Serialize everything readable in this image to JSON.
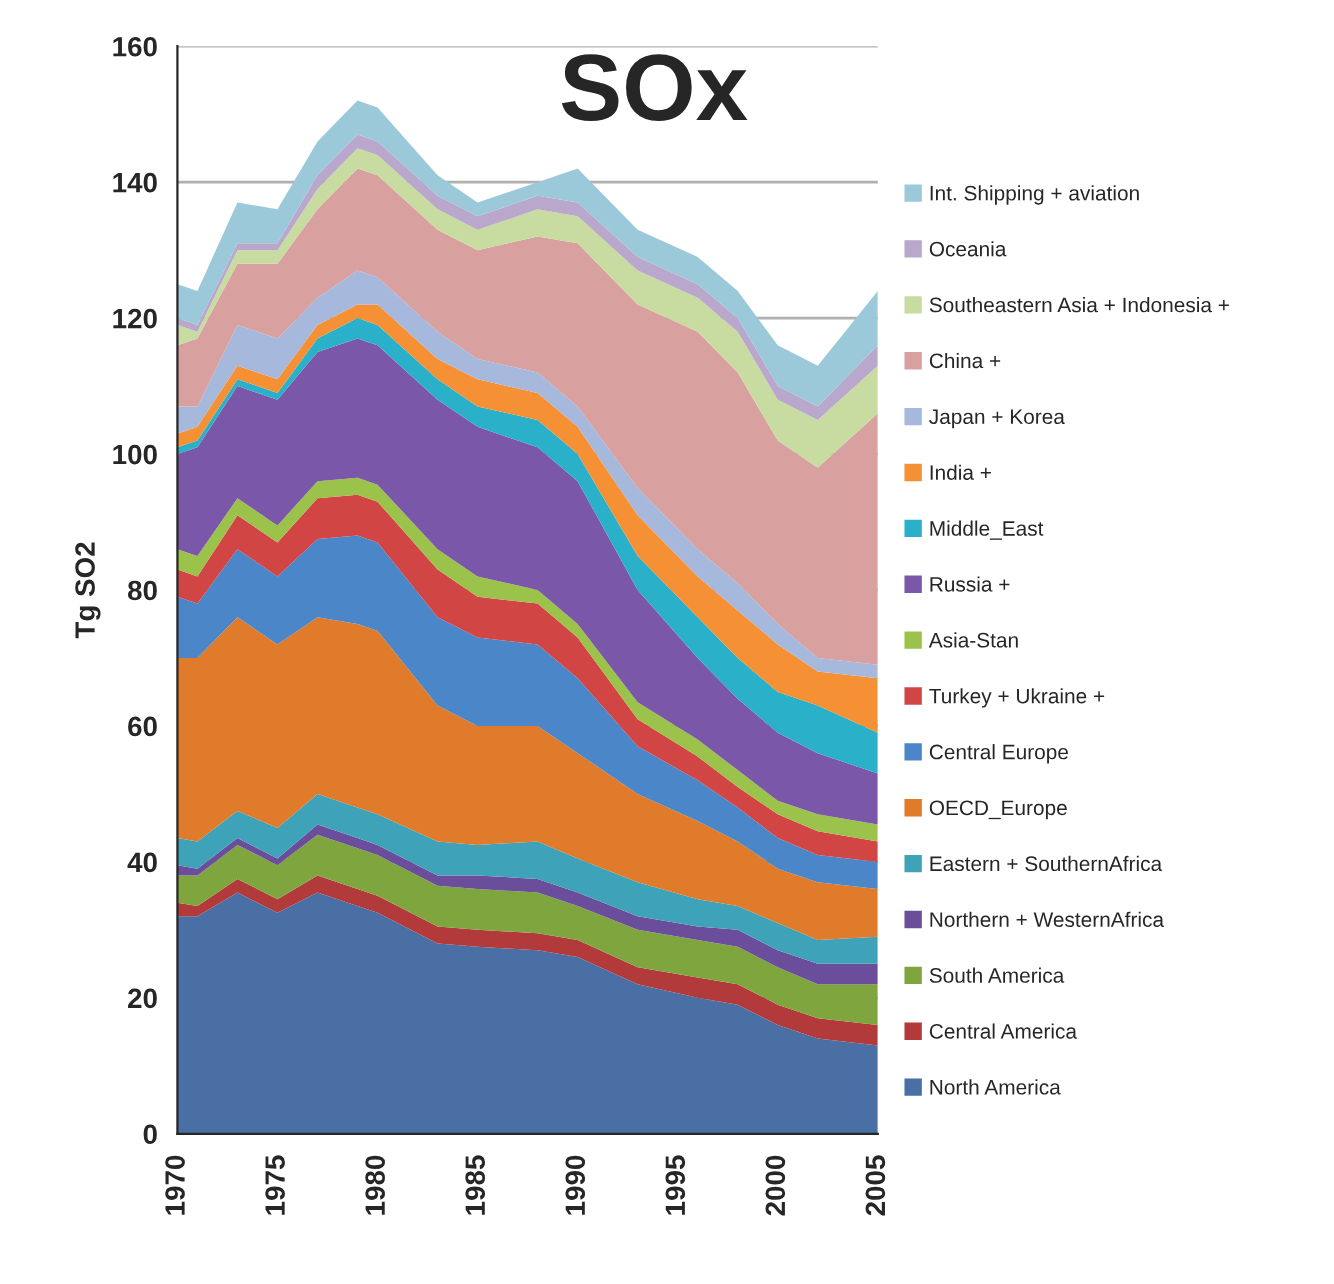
{
  "chart_data": {
    "type": "area",
    "stacked": true,
    "title": "SOx",
    "ylabel": "Tg SO2",
    "x": [
      1970,
      1971,
      1973,
      1975,
      1977,
      1979,
      1980,
      1983,
      1985,
      1988,
      1990,
      1993,
      1996,
      1998,
      2000,
      2002,
      2005
    ],
    "xlim": [
      1970,
      2005
    ],
    "xticks": [
      1970,
      1975,
      1980,
      1985,
      1990,
      1995,
      2000,
      2005
    ],
    "ylim": [
      0,
      160
    ],
    "yticks": [
      0,
      20,
      40,
      60,
      80,
      100,
      120,
      140,
      160
    ],
    "grid": "y",
    "legend": "right",
    "series": [
      {
        "name": "North America",
        "color": "#4a6fa5",
        "values": [
          32,
          32,
          35.5,
          32.5,
          35.5,
          33.5,
          32.5,
          28,
          27.5,
          27,
          26,
          22,
          20,
          19,
          16,
          14,
          13
        ]
      },
      {
        "name": "Central America",
        "color": "#b23a3a",
        "values": [
          2,
          1.5,
          2,
          2,
          2.5,
          2.5,
          2.5,
          2.5,
          2.5,
          2.5,
          2.5,
          2.5,
          3,
          3,
          3,
          3,
          3
        ]
      },
      {
        "name": "South America",
        "color": "#7fa53f",
        "values": [
          4,
          4.5,
          5,
          5,
          6,
          6,
          6,
          6,
          6,
          6,
          5,
          5.5,
          5.5,
          5.5,
          5.5,
          5,
          6
        ]
      },
      {
        "name": "Northern + WesternAfrica",
        "color": "#6b4e9b",
        "values": [
          1.5,
          1,
          1,
          1,
          1.5,
          1.5,
          1.5,
          1.5,
          2,
          2,
          2,
          2,
          2,
          2.5,
          2.5,
          3,
          3
        ]
      },
      {
        "name": "Eastern + SouthernAfrica",
        "color": "#3ea3b8",
        "values": [
          4,
          4,
          4,
          4.5,
          4.5,
          4.5,
          4.5,
          5,
          4.5,
          5.5,
          5,
          5,
          4,
          3.5,
          4,
          3.5,
          4
        ]
      },
      {
        "name": "OECD_Europe",
        "color": "#e07b2c",
        "values": [
          26.5,
          27,
          28.5,
          27,
          26,
          27,
          27,
          20,
          17.5,
          17,
          15.5,
          13,
          11.5,
          9.5,
          8,
          8.5,
          7
        ]
      },
      {
        "name": "Central Europe",
        "color": "#4a86c8",
        "values": [
          9,
          8,
          10,
          10,
          11.5,
          13,
          13,
          13,
          13,
          12,
          11,
          7,
          6,
          5,
          4.5,
          4,
          4
        ]
      },
      {
        "name": "Turkey + Ukraine +",
        "color": "#d24545",
        "values": [
          4,
          4,
          5,
          5,
          6,
          6,
          6,
          7,
          6,
          6,
          6,
          4,
          3.5,
          3,
          3.5,
          3.5,
          3
        ]
      },
      {
        "name": "Asia-Stan",
        "color": "#9bc24a",
        "values": [
          3,
          3,
          2.5,
          2.5,
          2.5,
          2.5,
          2.5,
          3,
          3,
          2,
          2,
          2.5,
          2.5,
          2.5,
          2,
          2.5,
          2.5
        ]
      },
      {
        "name": "Russia +",
        "color": "#7a57a8",
        "values": [
          14,
          16,
          16.5,
          18.5,
          19,
          20.5,
          20.5,
          22,
          22,
          21,
          21,
          16.5,
          12,
          10.5,
          10,
          9,
          7.5
        ]
      },
      {
        "name": "Middle_East",
        "color": "#2ab0c8",
        "values": [
          1,
          1,
          1,
          1,
          2,
          3,
          3,
          3,
          3,
          4,
          4,
          5,
          6,
          6,
          6,
          7,
          6
        ]
      },
      {
        "name": "India +",
        "color": "#f59035",
        "values": [
          2,
          2,
          2,
          2,
          2,
          2,
          3,
          3,
          4,
          4,
          4,
          6,
          6,
          7,
          7,
          5,
          8
        ]
      },
      {
        "name": "Japan + Korea",
        "color": "#a6b8dc",
        "values": [
          4,
          3,
          6,
          6,
          4,
          5,
          4,
          4,
          3,
          3,
          3,
          4,
          4,
          4,
          3,
          2,
          2
        ]
      },
      {
        "name": "China +",
        "color": "#d9a0a0",
        "values": [
          9,
          10,
          9,
          11,
          13,
          15,
          15,
          15,
          16,
          20,
          24,
          27,
          32,
          31,
          27,
          28,
          37
        ]
      },
      {
        "name": "Southeastern Asia + Indonesia +",
        "color": "#c8dba0",
        "values": [
          3,
          1,
          2,
          2,
          3,
          3,
          3,
          3,
          3,
          4,
          4,
          5,
          5,
          6,
          6,
          7,
          7
        ]
      },
      {
        "name": "Oceania",
        "color": "#b9a7cc",
        "values": [
          1,
          1,
          1,
          1,
          2,
          2,
          2,
          2,
          2,
          2,
          2,
          2,
          2,
          2,
          2,
          2,
          3
        ]
      },
      {
        "name": "Int. Shipping + aviation",
        "color": "#9cc9d9",
        "values": [
          5,
          5,
          6,
          5,
          5,
          5,
          5,
          3,
          2,
          2,
          5,
          4,
          4,
          4,
          6,
          6,
          8
        ]
      }
    ]
  }
}
